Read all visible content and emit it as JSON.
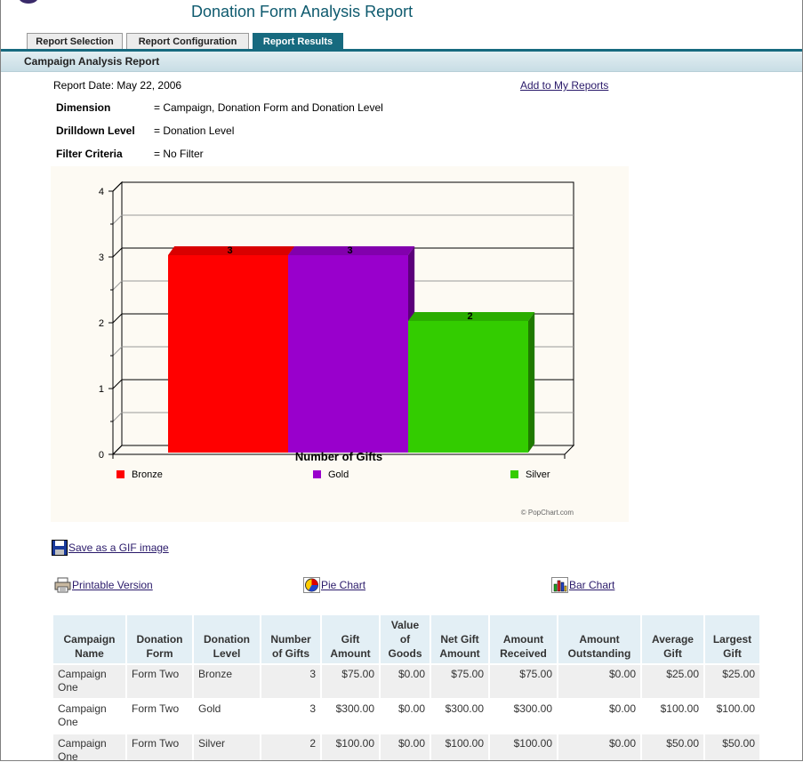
{
  "app": {
    "title": "Donation Form Analysis Report"
  },
  "tabs": [
    {
      "label": "Report Selection",
      "active": false
    },
    {
      "label": "Report Configuration",
      "active": false
    },
    {
      "label": "Report Results",
      "active": true
    }
  ],
  "section": {
    "title": "Campaign Analysis Report"
  },
  "report": {
    "date_label": "Report Date:",
    "date_value": "May 22, 2006",
    "add_link": "Add to My Reports",
    "dimension_label": "Dimension",
    "dimension_value": "= Campaign, Donation Form and Donation Level",
    "drilldown_label": "Drilldown Level",
    "drilldown_value": "= Donation Level",
    "filter_label": "Filter Criteria",
    "filter_value": "= No Filter"
  },
  "chart_data": {
    "type": "bar",
    "xlabel": "Number of Gifts",
    "ylim": [
      0,
      4
    ],
    "yticks": [
      "0",
      "1",
      "2",
      "3",
      "4"
    ],
    "series": [
      {
        "name": "Bronze",
        "value": 3,
        "label": "3",
        "color": "#ff0000"
      },
      {
        "name": "Gold",
        "value": 3,
        "label": "3",
        "color": "#9900cc"
      },
      {
        "name": "Silver",
        "value": 2,
        "label": "2",
        "color": "#33cc00"
      }
    ],
    "watermark": "© PopChart.com",
    "grid": true,
    "legend": "bottom"
  },
  "tools": {
    "save_gif": "Save as a GIF image",
    "printable": "Printable Version",
    "pie": "Pie Chart",
    "bar": "Bar Chart"
  },
  "table": {
    "headers": [
      [
        "Campaign",
        "Name"
      ],
      [
        "Donation",
        "Form"
      ],
      [
        "Donation",
        "Level"
      ],
      [
        "Number",
        "of Gifts"
      ],
      [
        "Gift",
        "Amount"
      ],
      [
        "Value",
        "of",
        "Goods"
      ],
      [
        "Net Gift",
        "Amount"
      ],
      [
        "Amount",
        "Received"
      ],
      [
        "Amount",
        "Outstanding"
      ],
      [
        "Average",
        "Gift"
      ],
      [
        "Largest",
        "Gift"
      ]
    ],
    "rows": [
      {
        "campaign": "Campaign One",
        "form": "Form Two",
        "level": "Bronze",
        "gifts": "3",
        "gift_amount": "$75.00",
        "goods": "$0.00",
        "net": "$75.00",
        "received": "$75.00",
        "outstanding": "$0.00",
        "average": "$25.00",
        "largest": "$25.00"
      },
      {
        "campaign": "Campaign One",
        "form": "Form Two",
        "level": "Gold",
        "gifts": "3",
        "gift_amount": "$300.00",
        "goods": "$0.00",
        "net": "$300.00",
        "received": "$300.00",
        "outstanding": "$0.00",
        "average": "$100.00",
        "largest": "$100.00"
      },
      {
        "campaign": "Campaign One",
        "form": "Form Two",
        "level": "Silver",
        "gifts": "2",
        "gift_amount": "$100.00",
        "goods": "$0.00",
        "net": "$100.00",
        "received": "$100.00",
        "outstanding": "$0.00",
        "average": "$50.00",
        "largest": "$50.00"
      }
    ]
  }
}
